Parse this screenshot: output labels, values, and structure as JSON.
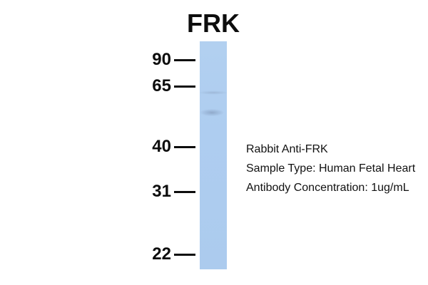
{
  "figure_title": "FRK",
  "blot": {
    "markers": [
      {
        "label": "90",
        "kda": 90
      },
      {
        "label": "65",
        "kda": 65
      },
      {
        "label": "40",
        "kda": 40
      },
      {
        "label": "31",
        "kda": 31
      },
      {
        "label": "22",
        "kda": 22
      }
    ],
    "bands": [
      {
        "name": "faint-upper-band"
      },
      {
        "name": "faint-main-band"
      }
    ]
  },
  "annotations": {
    "antibody": "Rabbit Anti-FRK",
    "sample_type": "Sample Type: Human Fetal Heart",
    "concentration": "Antibody Concentration: 1ug/mL"
  },
  "colors": {
    "background": "#ffffff",
    "lane": "#aecdf0",
    "band": "#768cac",
    "text": "#0d0d0d"
  }
}
